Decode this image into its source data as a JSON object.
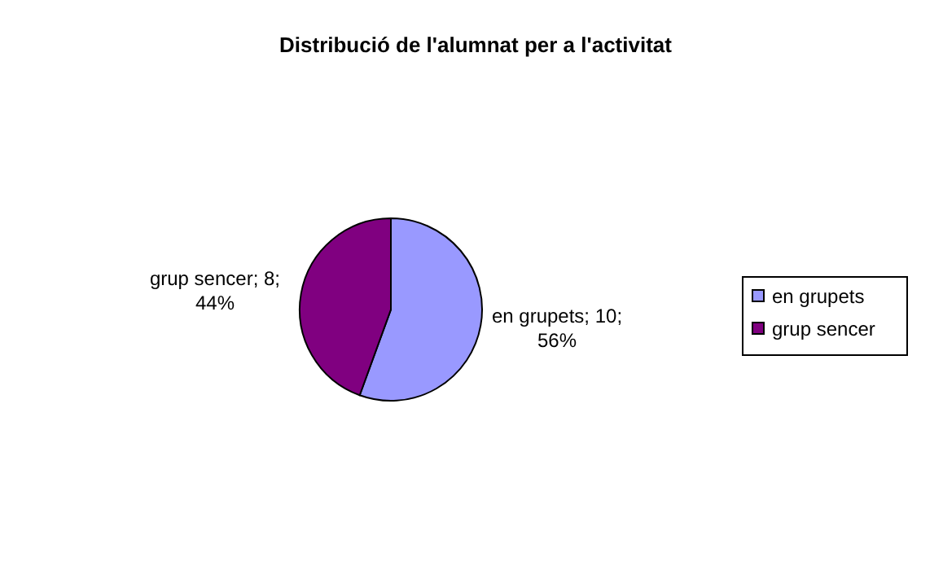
{
  "chart_data": {
    "type": "pie",
    "title": "Distribució de l'alumnat per a l'activitat",
    "categories": [
      "en grupets",
      "grup sencer"
    ],
    "values": [
      10,
      8
    ],
    "colors": [
      "#9999ff",
      "#800080"
    ],
    "value_labels": [
      "en grupets; 10; 56%",
      "grup sencer; 8; 44%"
    ],
    "legend": "right"
  }
}
